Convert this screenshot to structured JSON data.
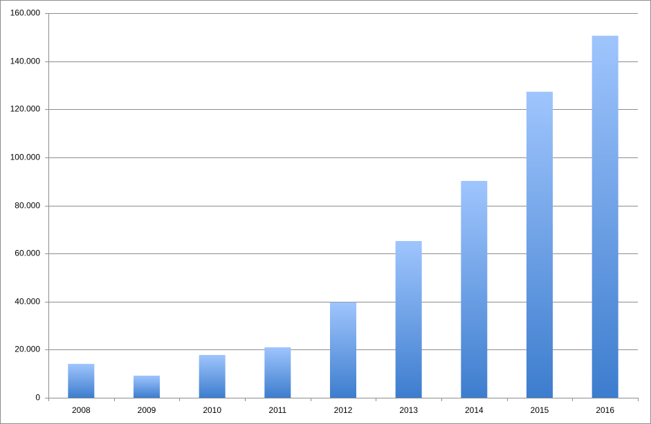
{
  "chart_data": {
    "type": "bar",
    "categories": [
      "2008",
      "2009",
      "2010",
      "2011",
      "2012",
      "2013",
      "2014",
      "2015",
      "2016"
    ],
    "values": [
      14100,
      9200,
      17800,
      21000,
      39700,
      65200,
      90200,
      127300,
      150600
    ],
    "color": "#3d7dce",
    "ylim": [
      0,
      160000
    ],
    "yticks": [
      0,
      {
        "value": 20000,
        "label": "20.000"
      },
      {
        "value": 40000,
        "label": "40.000"
      },
      {
        "value": 60000,
        "label": "60.000"
      },
      {
        "value": 80000,
        "label": "80.000"
      },
      {
        "value": 100000,
        "label": "100.000"
      },
      {
        "value": 120000,
        "label": "120.000"
      },
      {
        "value": 140000,
        "label": "140.000"
      },
      {
        "value": 160000,
        "label": "160.000"
      }
    ],
    "grid": true
  }
}
